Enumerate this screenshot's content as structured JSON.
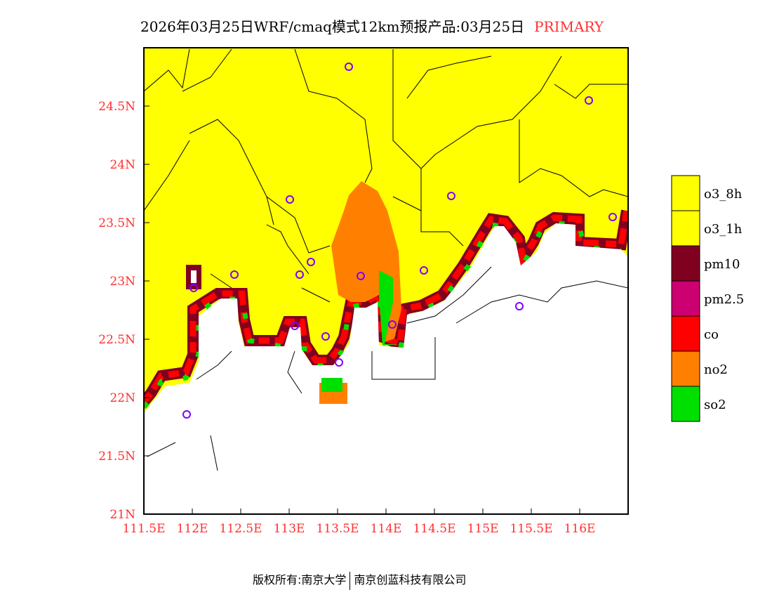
{
  "title": {
    "text": "2026年03月25日WRF/cmaq模式12km预报产品:03月25日",
    "product": "PRIMARY"
  },
  "axes": {
    "lon_ticks": [
      "111.5E",
      "112E",
      "112.5E",
      "113E",
      "113.5E",
      "114E",
      "114.5E",
      "115E",
      "115.5E",
      "116E"
    ],
    "lat_ticks": [
      "21N",
      "21.5N",
      "22N",
      "22.5N",
      "23N",
      "23.5N",
      "24N",
      "24.5N"
    ]
  },
  "legend": [
    {
      "label": "o3_8h",
      "color": "#ffff00"
    },
    {
      "label": "o3_1h",
      "color": "#ffff00"
    },
    {
      "label": "pm10",
      "color": "#800020"
    },
    {
      "label": "pm2.5",
      "color": "#cc0070"
    },
    {
      "label": "co",
      "color": "#ff0000"
    },
    {
      "label": "no2",
      "color": "#ff8000"
    },
    {
      "label": "so2",
      "color": "#00e000"
    }
  ],
  "colors": {
    "label": "#ff3030",
    "city": "#8000ff"
  },
  "footer": {
    "left": "版权所有:南京大学",
    "right": "南京创蓝科技有限公司"
  }
}
